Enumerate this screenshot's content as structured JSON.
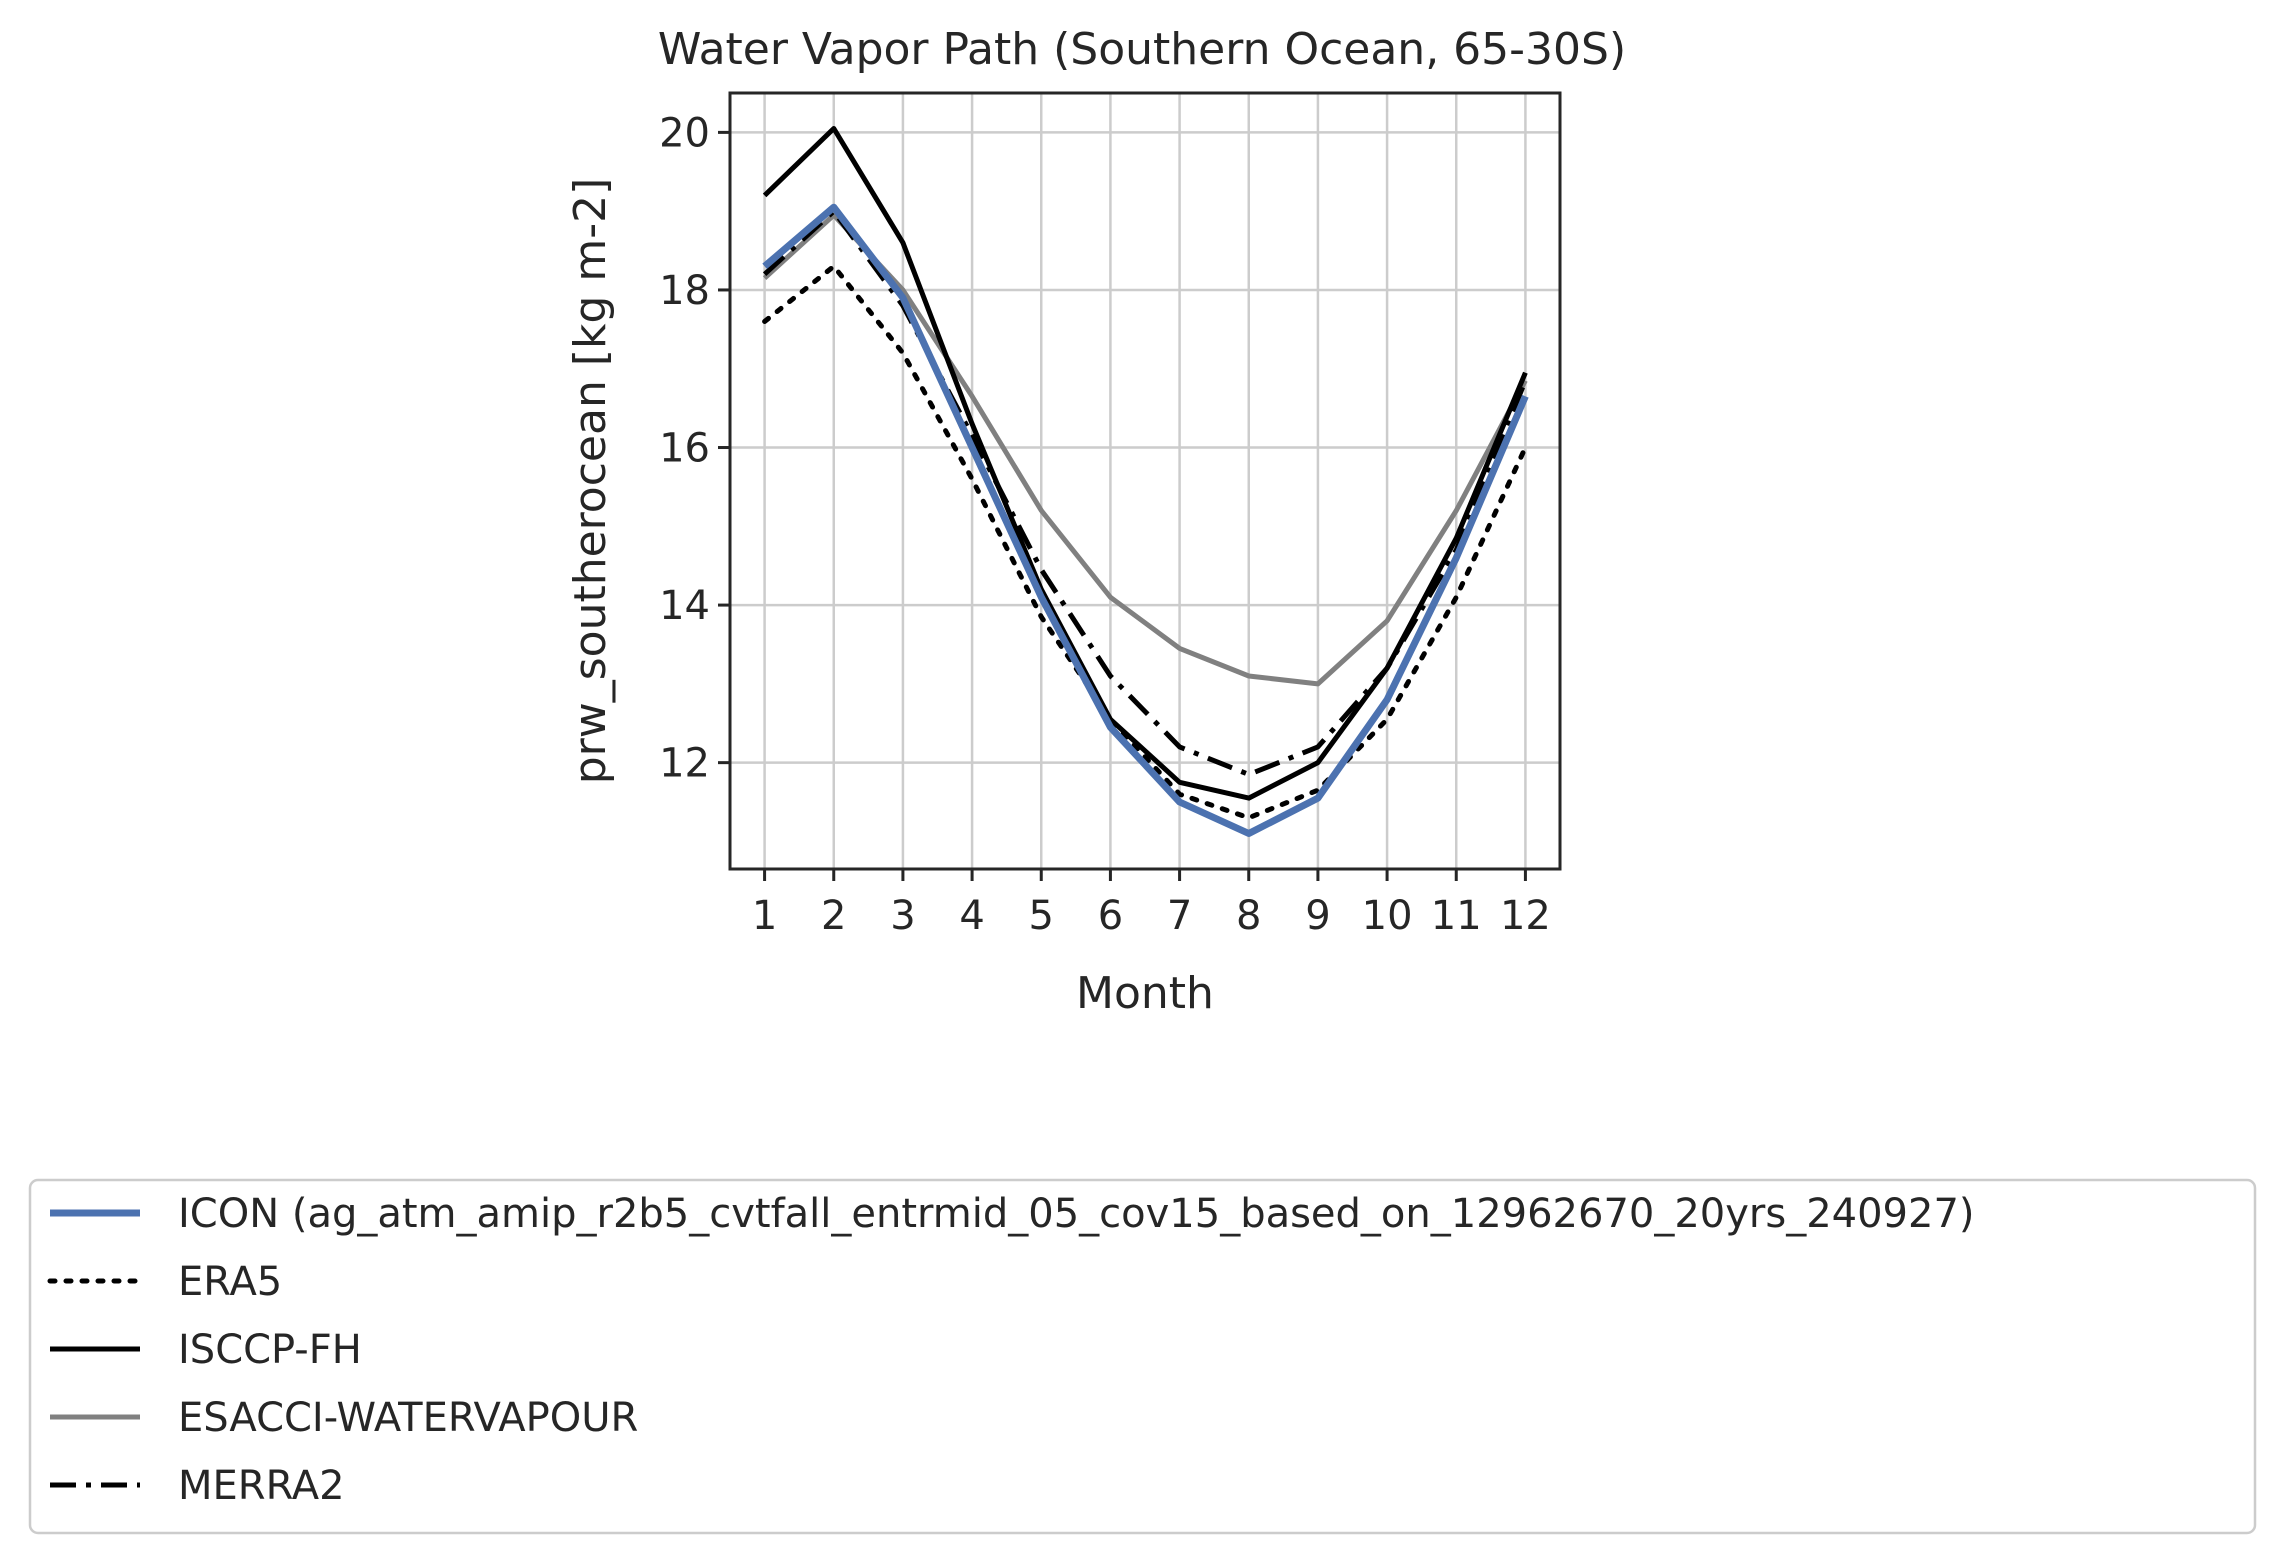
{
  "chart_data": {
    "type": "line",
    "title": "Water Vapor Path (Southern Ocean, 65-30S)",
    "xlabel": "Month",
    "ylabel": "prw_southerocean [kg m-2]",
    "x": [
      1,
      2,
      3,
      4,
      5,
      6,
      7,
      8,
      9,
      10,
      11,
      12
    ],
    "x_tick_labels": [
      "1",
      "2",
      "3",
      "4",
      "5",
      "6",
      "7",
      "8",
      "9",
      "10",
      "11",
      "12"
    ],
    "xlim": [
      0.5,
      12.5
    ],
    "y_ticks": [
      12,
      14,
      16,
      18,
      20
    ],
    "y_tick_labels": [
      "12",
      "14",
      "16",
      "18",
      "20"
    ],
    "ylim": [
      10.65,
      20.5
    ],
    "grid": true,
    "legend_position": "bottom",
    "series": [
      {
        "name": "ICON (ag_atm_amip_r2b5_cvtfall_entrmid_05_cov15_based_on_12962670_20yrs_240927)",
        "color": "#4c72b0",
        "style": "solid",
        "values": [
          18.3,
          19.05,
          17.9,
          16.0,
          14.1,
          12.45,
          11.5,
          11.1,
          11.55,
          12.8,
          14.6,
          16.65
        ]
      },
      {
        "name": "ERA5",
        "color": "#000000",
        "style": "dotted",
        "values": [
          17.6,
          18.3,
          17.2,
          15.6,
          13.85,
          12.55,
          11.6,
          11.3,
          11.65,
          12.55,
          14.1,
          16.0
        ]
      },
      {
        "name": "ISCCP-FH",
        "color": "#000000",
        "style": "solid",
        "values": [
          19.2,
          20.05,
          18.6,
          16.3,
          14.2,
          12.55,
          11.75,
          11.55,
          12.0,
          13.2,
          14.85,
          16.95
        ]
      },
      {
        "name": "ESACCI-WATERVAPOUR",
        "color": "#808080",
        "style": "solid",
        "values": [
          18.15,
          18.95,
          18.0,
          16.65,
          15.2,
          14.1,
          13.45,
          13.1,
          13.0,
          13.8,
          15.2,
          16.85
        ]
      },
      {
        "name": "MERRA2",
        "color": "#000000",
        "style": "dashdot",
        "values": [
          18.2,
          19.0,
          17.8,
          16.15,
          14.45,
          13.1,
          12.2,
          11.85,
          12.2,
          13.2,
          14.7,
          16.85
        ]
      }
    ]
  }
}
